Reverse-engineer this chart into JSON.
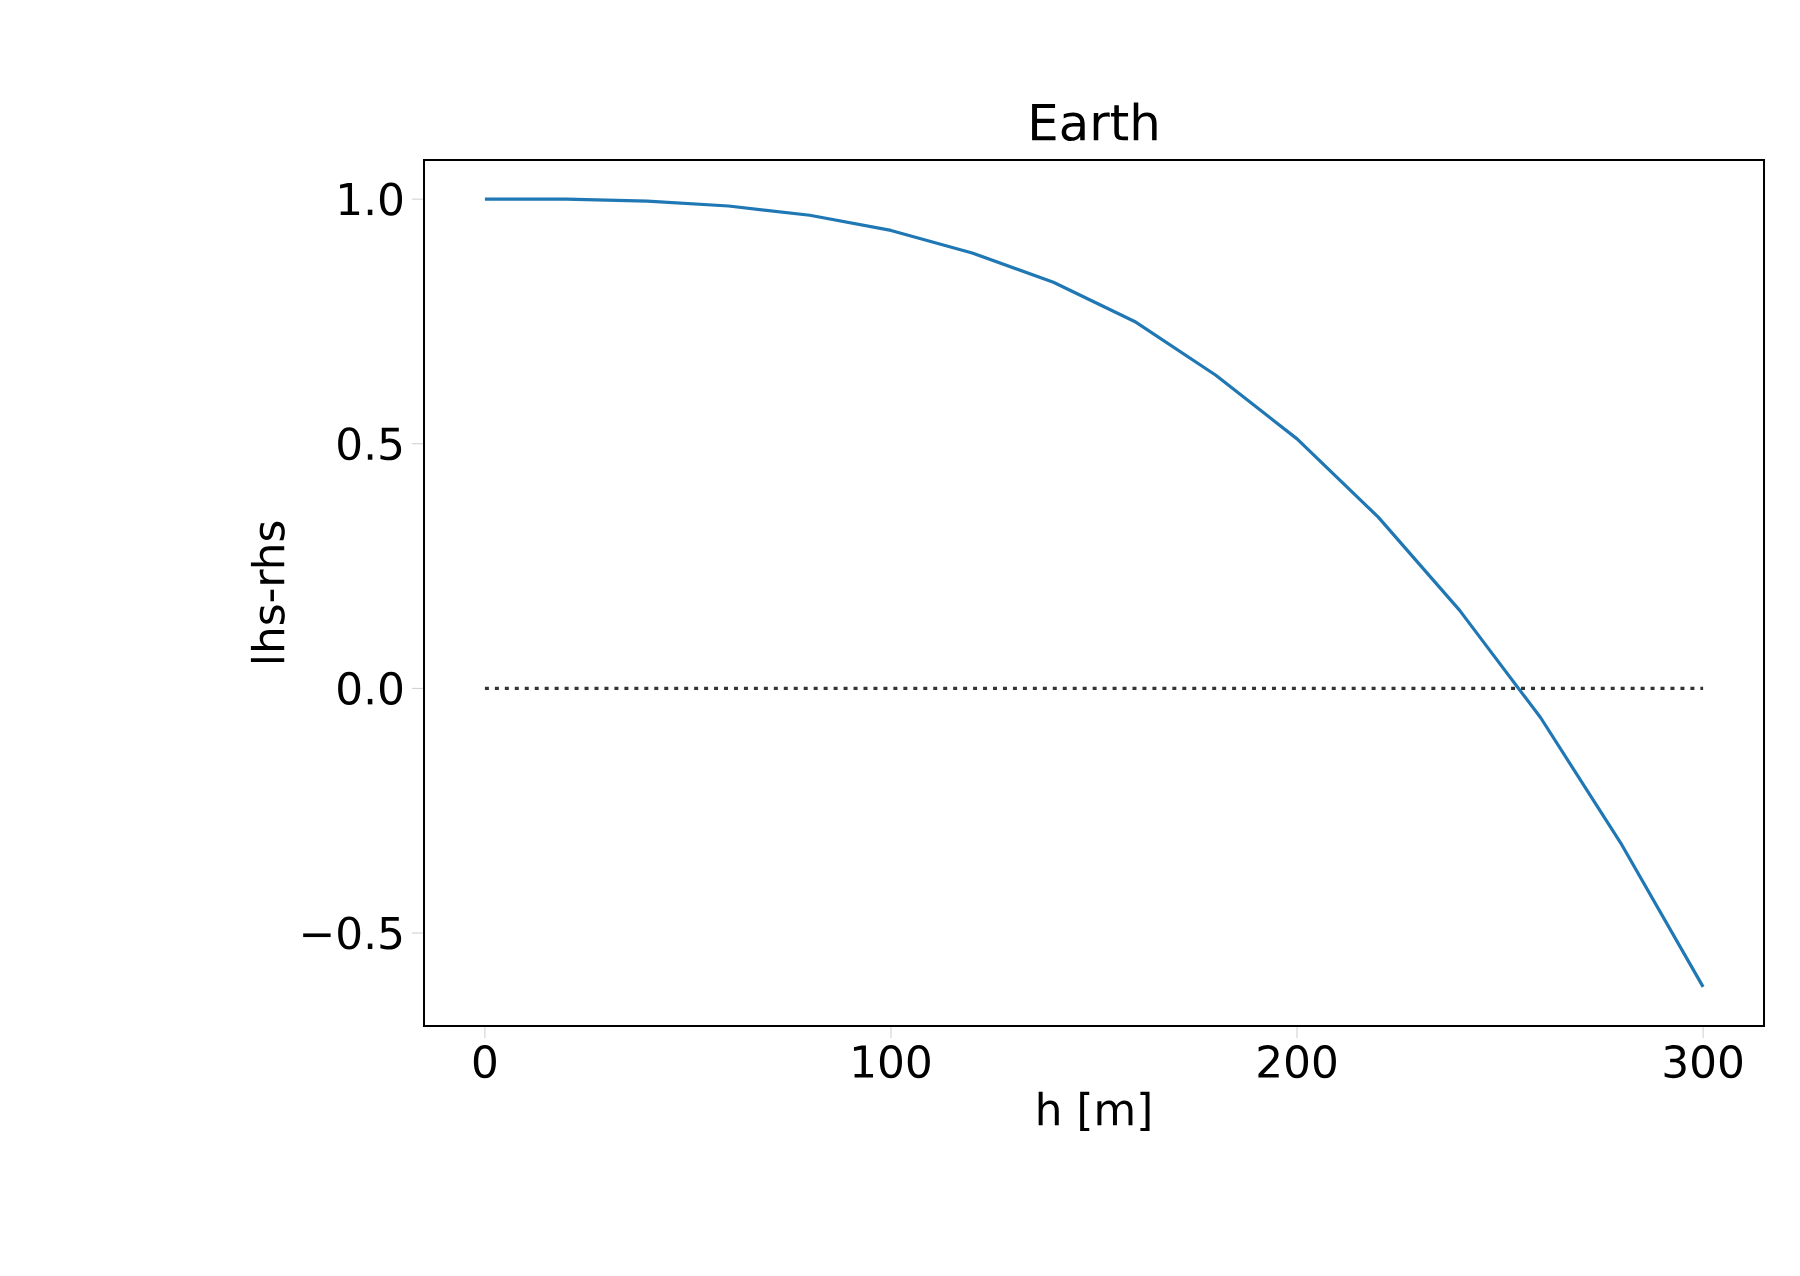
{
  "chart_data": {
    "type": "line",
    "title": "Earth",
    "xlabel": "h [m]",
    "ylabel": "lhs-rhs",
    "x": [
      0,
      20,
      40,
      60,
      80,
      100,
      120,
      140,
      160,
      180,
      200,
      220,
      240,
      260,
      280,
      300
    ],
    "series": [
      {
        "color": "#1f77b4",
        "values": [
          1.0,
          1.0,
          0.996,
          0.986,
          0.967,
          0.936,
          0.89,
          0.83,
          0.75,
          0.64,
          0.51,
          0.35,
          0.16,
          -0.06,
          -0.32,
          -0.61
        ]
      }
    ],
    "xlim": [
      -15,
      315
    ],
    "ylim": [
      -0.69,
      1.08
    ],
    "xticks": [
      0,
      100,
      200,
      300
    ],
    "yticks": [
      {
        "value": -0.5,
        "label": "−0.5"
      },
      {
        "value": 0,
        "label": "0.0"
      },
      {
        "value": 0.5,
        "label": "0.5"
      },
      {
        "value": 1.0,
        "label": "1.0"
      }
    ],
    "ref_lines": [
      {
        "axis": "y",
        "value": 0,
        "color": "#333333",
        "line_style": "dotted"
      }
    ]
  }
}
